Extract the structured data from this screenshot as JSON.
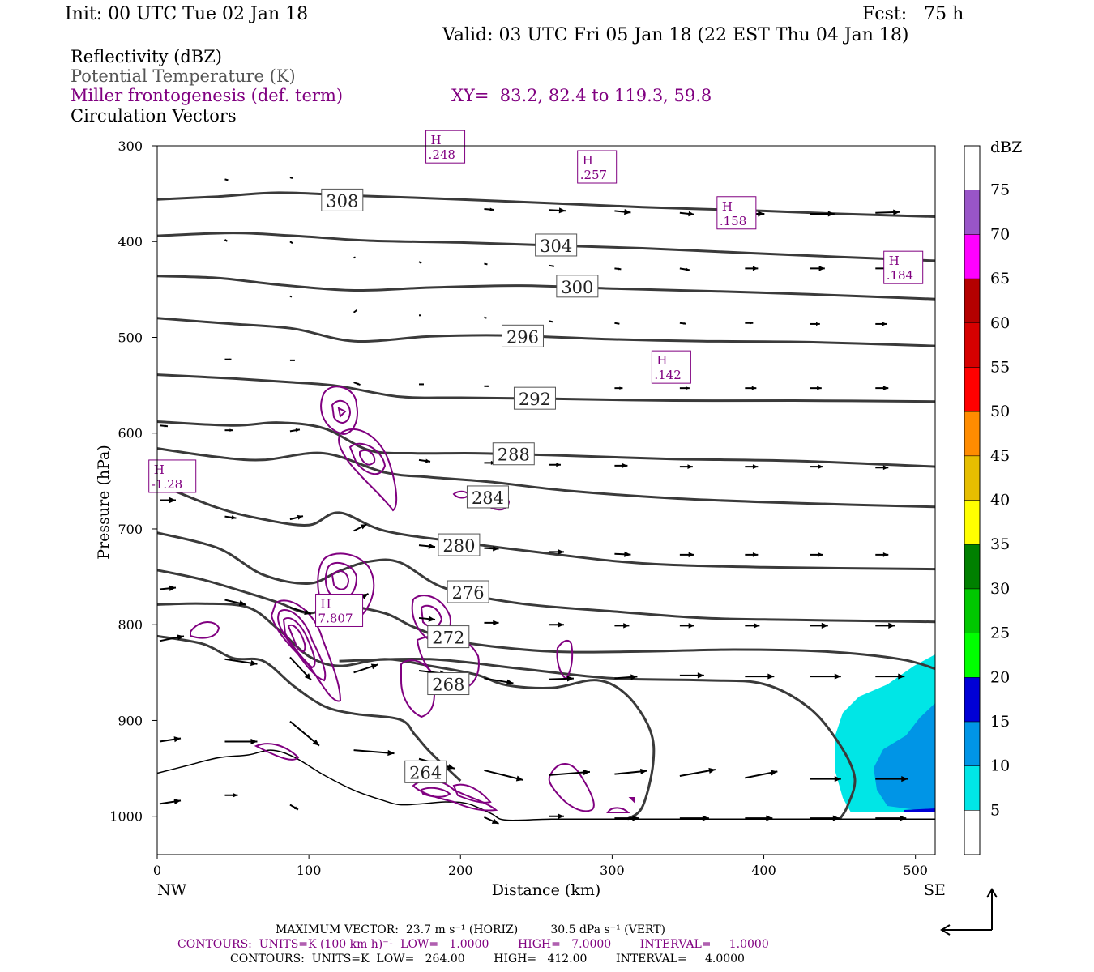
{
  "header": {
    "init": "Init: 00 UTC Tue 02 Jan 18",
    "fcst": "Fcst:   75 h",
    "valid": "Valid: 03 UTC Fri 05 Jan 18 (22 EST Thu 04 Jan 18)"
  },
  "fields": {
    "f1": "Reflectivity (dBZ)",
    "f2": "Potential Temperature (K)",
    "f3": "Miller frontogenesis (def. term)",
    "xy": "XY=  83.2, 82.4 to 119.3, 59.8",
    "f4": "Circulation Vectors"
  },
  "colors": {
    "theta": "#3a3a3a",
    "fronto": "#800080",
    "vector": "#000000",
    "bottom_line": "#000000"
  },
  "chart_data": {
    "type": "cross-section",
    "xlabel": "Distance (km)",
    "ylabel": "Pressure (hPa)",
    "xlim": [
      0,
      513
    ],
    "ylim": [
      1040,
      300
    ],
    "x_ticks": [
      0,
      100,
      200,
      300,
      400,
      500
    ],
    "y_ticks": [
      300,
      400,
      500,
      600,
      700,
      800,
      900,
      1000
    ],
    "left_end_label": "NW",
    "right_end_label": "SE",
    "colorbar": {
      "title": "dBZ",
      "ticks": [
        "5",
        "10",
        "15",
        "20",
        "25",
        "30",
        "35",
        "40",
        "45",
        "50",
        "55",
        "60",
        "65",
        "70",
        "75"
      ],
      "colors": [
        "#ffffff",
        "#00e6e6",
        "#0095e6",
        "#0000d6",
        "#00ff00",
        "#00c800",
        "#008000",
        "#ffff00",
        "#e6be00",
        "#ff8c00",
        "#ff0000",
        "#d60000",
        "#b40000",
        "#ff00ff",
        "#9955c8",
        "#ffffff"
      ]
    },
    "theta_contours": [
      {
        "label": "308",
        "lx": 122,
        "lp": 357,
        "pts": [
          [
            0,
            356
          ],
          [
            40,
            353
          ],
          [
            80,
            349
          ],
          [
            130,
            352
          ],
          [
            200,
            356
          ],
          [
            260,
            360
          ],
          [
            320,
            364
          ],
          [
            400,
            368
          ],
          [
            450,
            371
          ],
          [
            513,
            374
          ]
        ]
      },
      {
        "label": "304",
        "lx": 263,
        "lp": 404,
        "pts": [
          [
            0,
            394
          ],
          [
            50,
            391
          ],
          [
            90,
            394
          ],
          [
            140,
            399
          ],
          [
            200,
            401
          ],
          [
            260,
            404
          ],
          [
            320,
            407
          ],
          [
            390,
            412
          ],
          [
            450,
            416
          ],
          [
            513,
            420
          ]
        ]
      },
      {
        "label": "300",
        "lx": 277,
        "lp": 447,
        "pts": [
          [
            0,
            436
          ],
          [
            40,
            438
          ],
          [
            80,
            445
          ],
          [
            130,
            451
          ],
          [
            180,
            448
          ],
          [
            240,
            446
          ],
          [
            300,
            449
          ],
          [
            370,
            452
          ],
          [
            430,
            455
          ],
          [
            513,
            460
          ]
        ]
      },
      {
        "label": "296",
        "lx": 241,
        "lp": 499,
        "pts": [
          [
            0,
            480
          ],
          [
            50,
            486
          ],
          [
            90,
            491
          ],
          [
            130,
            504
          ],
          [
            180,
            499
          ],
          [
            230,
            498
          ],
          [
            300,
            502
          ],
          [
            360,
            504
          ],
          [
            430,
            505
          ],
          [
            513,
            509
          ]
        ]
      },
      {
        "label": "292",
        "lx": 249,
        "lp": 564,
        "pts": [
          [
            0,
            539
          ],
          [
            50,
            543
          ],
          [
            90,
            547
          ],
          [
            120,
            551
          ],
          [
            160,
            562
          ],
          [
            200,
            563
          ],
          [
            260,
            564
          ],
          [
            340,
            566
          ],
          [
            420,
            566
          ],
          [
            513,
            567
          ]
        ]
      },
      {
        "label": "288",
        "lx": 235,
        "lp": 622,
        "pts": [
          [
            0,
            588
          ],
          [
            50,
            592
          ],
          [
            80,
            589
          ],
          [
            110,
            595
          ],
          [
            140,
            618
          ],
          [
            170,
            621
          ],
          [
            210,
            621
          ],
          [
            260,
            623
          ],
          [
            340,
            627
          ],
          [
            420,
            629
          ],
          [
            513,
            635
          ]
        ]
      },
      {
        "label": "284",
        "lx": 218,
        "lp": 667,
        "pts": [
          [
            0,
            616
          ],
          [
            40,
            625
          ],
          [
            70,
            628
          ],
          [
            110,
            621
          ],
          [
            150,
            641
          ],
          [
            180,
            646
          ],
          [
            220,
            651
          ],
          [
            270,
            660
          ],
          [
            340,
            668
          ],
          [
            420,
            673
          ],
          [
            513,
            677
          ]
        ]
      },
      {
        "label": "280",
        "lx": 199,
        "lp": 717,
        "pts": [
          [
            0,
            653
          ],
          [
            40,
            678
          ],
          [
            70,
            690
          ],
          [
            100,
            696
          ],
          [
            120,
            683
          ],
          [
            150,
            702
          ],
          [
            200,
            714
          ],
          [
            260,
            726
          ],
          [
            320,
            736
          ],
          [
            400,
            740
          ],
          [
            513,
            742
          ]
        ]
      },
      {
        "label": "276",
        "lx": 205,
        "lp": 766,
        "pts": [
          [
            0,
            704
          ],
          [
            40,
            720
          ],
          [
            70,
            748
          ],
          [
            100,
            757
          ],
          [
            120,
            744
          ],
          [
            140,
            734
          ],
          [
            160,
            735
          ],
          [
            190,
            762
          ],
          [
            240,
            778
          ],
          [
            300,
            786
          ],
          [
            360,
            793
          ],
          [
            420,
            795
          ],
          [
            513,
            797
          ]
        ]
      },
      {
        "label": "272",
        "lx": 192,
        "lp": 813,
        "pts": [
          [
            0,
            743
          ],
          [
            30,
            753
          ],
          [
            60,
            767
          ],
          [
            80,
            777
          ],
          [
            100,
            788
          ],
          [
            120,
            780
          ],
          [
            150,
            788
          ],
          [
            170,
            803
          ],
          [
            200,
            818
          ],
          [
            260,
            828
          ],
          [
            320,
            828
          ],
          [
            380,
            826
          ],
          [
            440,
            828
          ],
          [
            490,
            836
          ],
          [
            513,
            846
          ]
        ]
      },
      {
        "label": "268",
        "lx": 192,
        "lp": 862,
        "pts": [
          [
            0,
            779
          ],
          [
            30,
            778
          ],
          [
            60,
            782
          ],
          [
            80,
            805
          ],
          [
            100,
            833
          ],
          [
            120,
            843
          ],
          [
            150,
            836
          ],
          [
            180,
            843
          ],
          [
            210,
            852
          ],
          [
            230,
            863
          ],
          [
            260,
            866
          ],
          [
            290,
            858
          ],
          [
            310,
            874
          ],
          [
            325,
            910
          ],
          [
            327,
            945
          ],
          [
            320,
            990
          ],
          [
            310,
            1003
          ]
        ]
      },
      {
        "label": "264",
        "lx": 177,
        "lp": 954,
        "pts": [
          [
            0,
            812
          ],
          [
            30,
            820
          ],
          [
            50,
            835
          ],
          [
            70,
            838
          ],
          [
            90,
            864
          ],
          [
            110,
            885
          ],
          [
            130,
            893
          ],
          [
            160,
            899
          ],
          [
            170,
            915
          ],
          [
            180,
            933
          ],
          [
            200,
            963
          ]
        ]
      },
      {
        "label": "",
        "lx": 0,
        "lp": 0,
        "pts": [
          [
            120,
            838
          ],
          [
            180,
            836
          ],
          [
            240,
            846
          ],
          [
            300,
            856
          ],
          [
            360,
            858
          ],
          [
            400,
            862
          ],
          [
            430,
            887
          ],
          [
            450,
            925
          ],
          [
            460,
            960
          ],
          [
            455,
            990
          ],
          [
            450,
            1003
          ]
        ]
      }
    ],
    "fronto_highs": [
      {
        "label": ".248",
        "x": 190,
        "p": 301
      },
      {
        "label": ".257",
        "x": 290,
        "p": 322
      },
      {
        "label": ".158",
        "x": 382,
        "p": 370
      },
      {
        "label": ".184",
        "x": 492,
        "p": 427
      },
      {
        "label": ".142",
        "x": 339,
        "p": 531
      },
      {
        "label": "-1.28",
        "x": 10,
        "p": 645
      },
      {
        "label": "7.807",
        "x": 120,
        "p": 785
      }
    ],
    "vector_note": "MAXIMUM VECTOR:  23.7 m s⁻¹ (HORIZ)         30.5 dPa s⁻¹ (VERT)",
    "contour_note_fronto": "CONTOURS:  UNITS=K (100 km h)⁻¹  LOW=   1.0000        HIGH=   7.0000        INTERVAL=     1.0000",
    "contour_note_theta": "CONTOURS:  UNITS=K  LOW=   264.00        HIGH=   412.00        INTERVAL=     4.0000"
  }
}
